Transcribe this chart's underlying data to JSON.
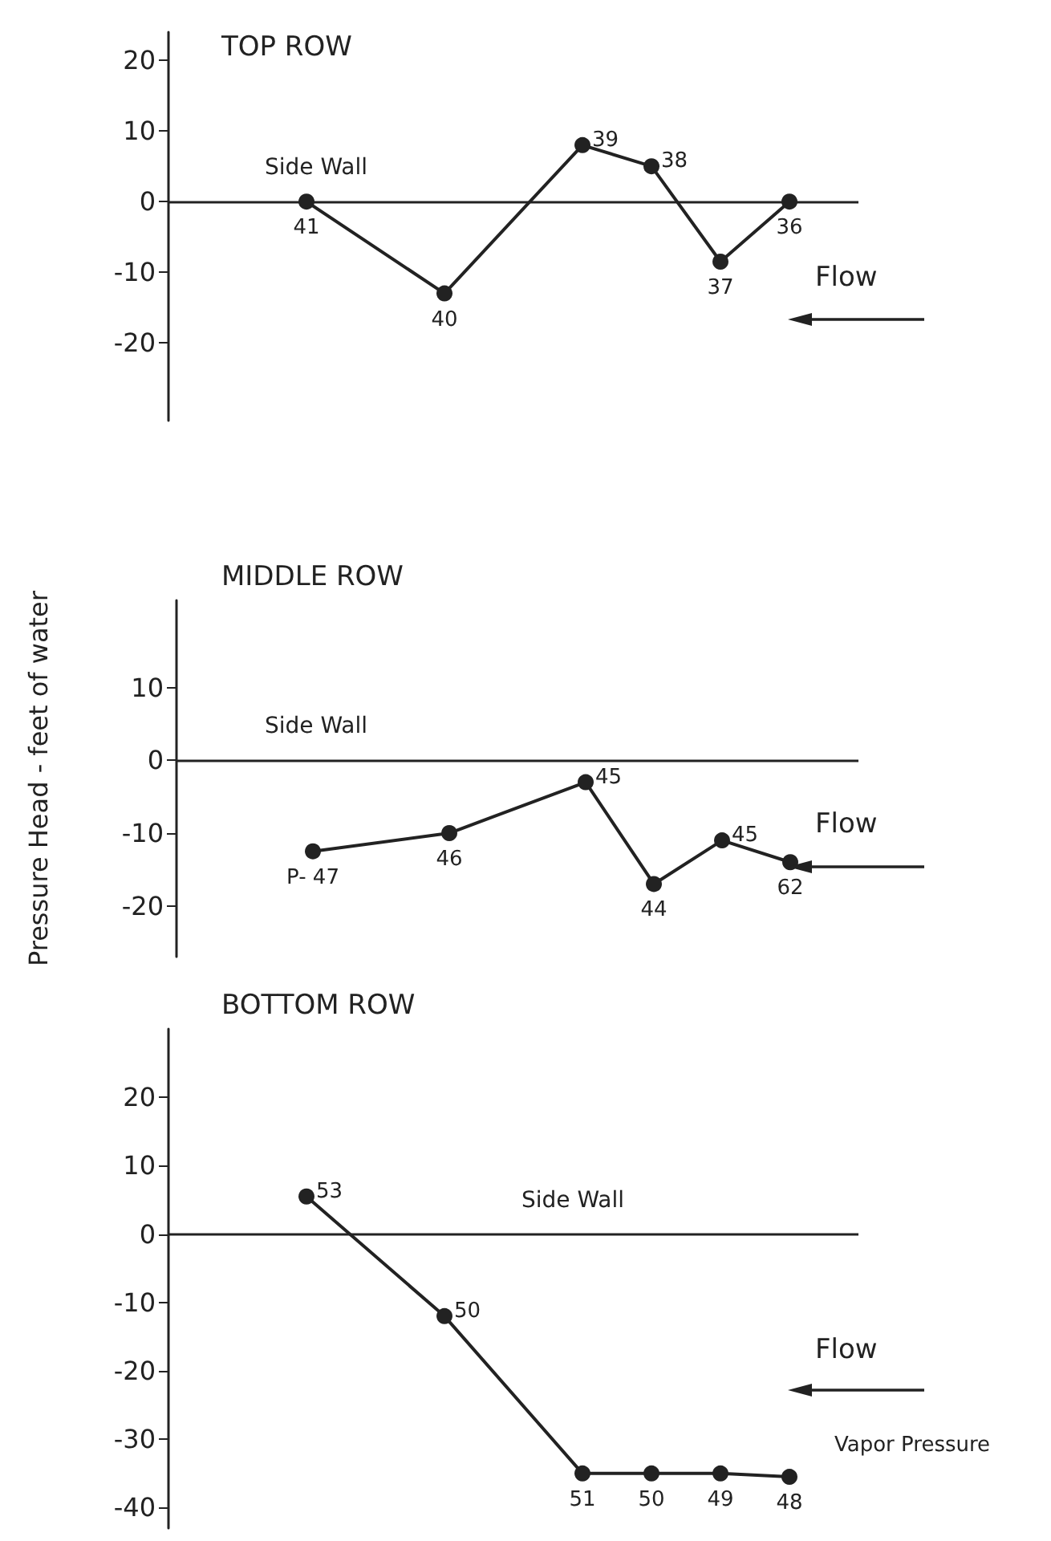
{
  "chart_data": [
    {
      "type": "line",
      "title": "TOP ROW",
      "categories": [
        null,
        null,
        null,
        null,
        null,
        null,
        null,
        null,
        null,
        null,
        null
      ],
      "series": [
        {
          "color": "#222222",
          "values": [
            null,
            null,
            0,
            null,
            -13,
            null,
            8,
            5,
            -8.5,
            0,
            null
          ]
        }
      ],
      "ylim": [
        -31,
        24
      ],
      "yticks": [
        -20,
        -10,
        0,
        10,
        20
      ],
      "tick_labels": "y",
      "marker": "circle",
      "line_style": "solid",
      "ref_lines": [
        {
          "axis": "y",
          "value": 0,
          "label": "Side Wall"
        }
      ],
      "annotations": [
        "41",
        "40",
        "39",
        "38",
        "37",
        "36",
        "Flow"
      ]
    },
    {
      "type": "line",
      "title": "MIDDLE ROW",
      "ylabel": "Pressure Head - feet of water",
      "categories": [
        null,
        null,
        null,
        null,
        null,
        null,
        null,
        null,
        null,
        null,
        null
      ],
      "series": [
        {
          "color": "#222222",
          "values": [
            null,
            null,
            -12.5,
            null,
            -10,
            null,
            -3,
            -17,
            -11,
            -14,
            null
          ]
        }
      ],
      "ylim": [
        -27,
        22
      ],
      "yticks": [
        -20,
        -10,
        0,
        10
      ],
      "tick_labels": "y",
      "marker": "circle",
      "line_style": "solid",
      "ref_lines": [
        {
          "axis": "y",
          "value": 0,
          "label": "Side Wall"
        }
      ],
      "annotations": [
        "P- 47",
        "46",
        "45",
        "44",
        "45",
        "62",
        "Flow"
      ]
    },
    {
      "type": "line",
      "title": "BOTTOM ROW",
      "categories": [
        null,
        null,
        null,
        null,
        null,
        null,
        null,
        null,
        null,
        null,
        null
      ],
      "series": [
        {
          "color": "#222222",
          "values": [
            null,
            null,
            5.5,
            null,
            -12,
            null,
            -35,
            -35,
            -35,
            -35.5,
            null
          ]
        }
      ],
      "ylim": [
        -43,
        30
      ],
      "yticks": [
        -40,
        -30,
        -20,
        -10,
        0,
        10,
        20
      ],
      "tick_labels": "y",
      "marker": "circle",
      "line_style": "solid",
      "ref_lines": [
        {
          "axis": "y",
          "value": 0,
          "label": "Side Wall"
        }
      ],
      "annotations": [
        "53",
        "50",
        "51",
        "50",
        "49",
        "48",
        "Flow",
        "Vapor Pressure"
      ]
    }
  ]
}
